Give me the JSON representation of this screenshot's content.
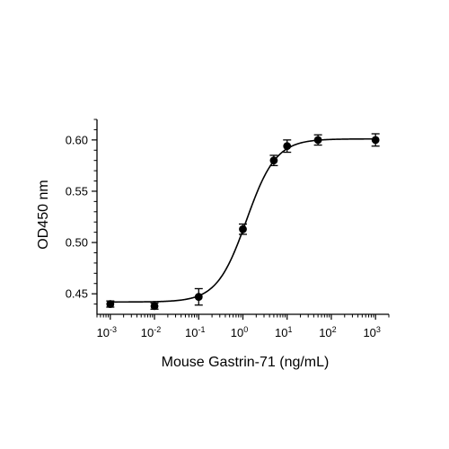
{
  "chart_data": {
    "type": "scatter",
    "title": "",
    "xlabel": "Mouse Gastrin-71 (ng/mL)",
    "ylabel": "OD450 nm",
    "xscale": "log",
    "xlim": [
      0.0005,
      2000
    ],
    "ylim": [
      0.43,
      0.62
    ],
    "grid": false,
    "legend": "none",
    "x_ticks": [
      {
        "value": 0.001,
        "base": "10",
        "exp": "-3"
      },
      {
        "value": 0.01,
        "base": "10",
        "exp": "-2"
      },
      {
        "value": 0.1,
        "base": "10",
        "exp": "-1"
      },
      {
        "value": 1,
        "base": "10",
        "exp": "0"
      },
      {
        "value": 10,
        "base": "10",
        "exp": "1"
      },
      {
        "value": 100,
        "base": "10",
        "exp": "2"
      },
      {
        "value": 1000,
        "base": "10",
        "exp": "3"
      }
    ],
    "y_ticks": [
      {
        "value": 0.45,
        "label": "0.45"
      },
      {
        "value": 0.5,
        "label": "0.50"
      },
      {
        "value": 0.55,
        "label": "0.55"
      },
      {
        "value": 0.6,
        "label": "0.60"
      }
    ],
    "series": [
      {
        "x": [
          0.001,
          0.01,
          0.1,
          1,
          5,
          10,
          50,
          1000
        ],
        "y": [
          0.44,
          0.438,
          0.447,
          0.513,
          0.58,
          0.594,
          0.6,
          0.6
        ],
        "error": [
          0.003,
          0.003,
          0.008,
          0.005,
          0.005,
          0.006,
          0.005,
          0.006
        ],
        "fit": {
          "bottom": 0.442,
          "top": 0.601,
          "ec50": 1.2,
          "hill": 1.3
        }
      }
    ],
    "color": "#000000"
  }
}
